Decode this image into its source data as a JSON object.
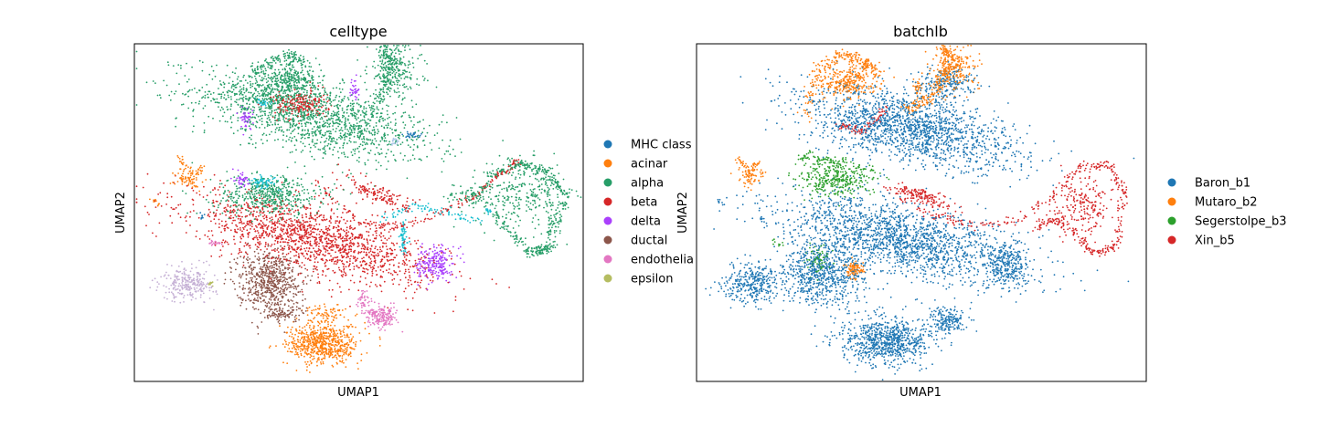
{
  "chart_data": [
    {
      "type": "scatter",
      "title": "celltype",
      "xlabel": "UMAP1",
      "ylabel": "UMAP2",
      "grid": false,
      "ticks": false,
      "legend_placement": "right-outside",
      "categories": [
        "MHC class",
        "acinar",
        "alpha",
        "beta",
        "delta",
        "ductal",
        "endothelia",
        "epsilon"
      ],
      "colors": [
        "#1f77b4",
        "#ff7f0e",
        "#279e68",
        "#d62728",
        "#aa40fc",
        "#8c564b",
        "#e377c2",
        "#b5bd61"
      ],
      "extra_colors": [
        "#17becf",
        "#aec7e8",
        "#c5b0d5"
      ],
      "clusters": [
        {
          "label": "alpha",
          "x": 0.4,
          "y": 0.78,
          "w": 0.28,
          "h": 0.1,
          "rot": -18,
          "n": 1400
        },
        {
          "label": "alpha",
          "x": 0.74,
          "y": 0.55,
          "w": 0.05,
          "h": 0.04,
          "rot": 0,
          "n": 60
        },
        {
          "label": "alpha",
          "x": 0.86,
          "y": 0.55,
          "w": 0.1,
          "h": 0.1,
          "rot": 0,
          "n": 260
        },
        {
          "label": "alpha",
          "x": 0.32,
          "y": 0.86,
          "w": 0.1,
          "h": 0.06,
          "rot": 0,
          "n": 300
        },
        {
          "label": "alpha",
          "x": 0.3,
          "y": 0.55,
          "w": 0.12,
          "h": 0.06,
          "rot": 0,
          "n": 500
        },
        {
          "label": "alpha",
          "x": 0.58,
          "y": 0.92,
          "w": 0.06,
          "h": 0.08,
          "rot": 0,
          "n": 250
        },
        {
          "label": "alpha",
          "x": 0.35,
          "y": 0.9,
          "w": 0.06,
          "h": 0.04,
          "rot": 0,
          "n": 200
        },
        {
          "label": "beta",
          "x": 0.4,
          "y": 0.42,
          "w": 0.28,
          "h": 0.09,
          "rot": -20,
          "n": 1600
        },
        {
          "label": "beta",
          "x": 0.37,
          "y": 0.82,
          "w": 0.06,
          "h": 0.04,
          "rot": 0,
          "n": 220
        },
        {
          "label": "beta",
          "x": 0.55,
          "y": 0.55,
          "w": 0.08,
          "h": 0.03,
          "rot": -30,
          "n": 150
        },
        {
          "label": "ductal",
          "x": 0.3,
          "y": 0.3,
          "w": 0.07,
          "h": 0.09,
          "rot": 0,
          "n": 650
        },
        {
          "label": "ductal",
          "x": 0.33,
          "y": 0.2,
          "w": 0.05,
          "h": 0.02,
          "rot": 0,
          "n": 90
        },
        {
          "label": "acinar",
          "x": 0.42,
          "y": 0.11,
          "w": 0.08,
          "h": 0.06,
          "rot": 0,
          "n": 650
        },
        {
          "label": "acinar",
          "x": 0.43,
          "y": 0.2,
          "w": 0.04,
          "h": 0.03,
          "rot": 0,
          "n": 80
        },
        {
          "label": "acinar",
          "x": 0.12,
          "y": 0.6,
          "w": 0.03,
          "h": 0.03,
          "rot": 0,
          "n": 70
        },
        {
          "label": "endothelia",
          "x": 0.55,
          "y": 0.19,
          "w": 0.035,
          "h": 0.03,
          "rot": 0,
          "n": 180
        },
        {
          "label": "endothelia",
          "x": 0.51,
          "y": 0.24,
          "w": 0.015,
          "h": 0.04,
          "rot": 0,
          "n": 40
        },
        {
          "label": "endothelia",
          "x": 0.18,
          "y": 0.41,
          "w": 0.015,
          "h": 0.01,
          "rot": 0,
          "n": 20
        },
        {
          "label": "delta",
          "x": 0.67,
          "y": 0.35,
          "w": 0.04,
          "h": 0.05,
          "rot": 0,
          "n": 220
        },
        {
          "label": "delta",
          "x": 0.24,
          "y": 0.6,
          "w": 0.015,
          "h": 0.03,
          "rot": 0,
          "n": 45
        },
        {
          "label": "delta",
          "x": 0.25,
          "y": 0.78,
          "w": 0.015,
          "h": 0.03,
          "rot": 0,
          "n": 45
        },
        {
          "label": "delta",
          "x": 0.49,
          "y": 0.86,
          "w": 0.01,
          "h": 0.03,
          "rot": 0,
          "n": 35
        },
        {
          "label": "MHC class",
          "x": 0.62,
          "y": 0.73,
          "w": 0.02,
          "h": 0.01,
          "rot": 0,
          "n": 25
        },
        {
          "label": "MHC class",
          "x": 0.15,
          "y": 0.49,
          "w": 0.005,
          "h": 0.01,
          "rot": 0,
          "n": 8
        },
        {
          "label": "epsilon",
          "x": 0.17,
          "y": 0.29,
          "w": 0.006,
          "h": 0.008,
          "rot": 0,
          "n": 12
        }
      ],
      "extra_clusters": [
        {
          "color_index": 2,
          "x": 0.12,
          "y": 0.29,
          "w": 0.06,
          "h": 0.05,
          "n": 260
        },
        {
          "color_index": 0,
          "x": 0.29,
          "y": 0.59,
          "w": 0.03,
          "h": 0.02,
          "n": 70
        },
        {
          "color_index": 0,
          "x": 0.6,
          "y": 0.42,
          "w": 0.01,
          "h": 0.05,
          "n": 60
        },
        {
          "color_index": 1,
          "x": 0.58,
          "y": 0.71,
          "w": 0.01,
          "h": 0.01,
          "n": 20
        }
      ],
      "curves": [
        {
          "label": "alpha",
          "pts": [
            [
              0.27,
              0.91
            ],
            [
              0.3,
              0.95
            ],
            [
              0.35,
              0.97
            ],
            [
              0.38,
              0.94
            ]
          ],
          "n": 120,
          "spread": 0.008
        },
        {
          "label": "alpha",
          "pts": [
            [
              0.5,
              0.74
            ],
            [
              0.55,
              0.85
            ],
            [
              0.57,
              0.95
            ],
            [
              0.55,
              0.99
            ]
          ],
          "n": 150,
          "spread": 0.008
        },
        {
          "label": "alpha",
          "pts": [
            [
              0.75,
              0.53
            ],
            [
              0.8,
              0.61
            ],
            [
              0.86,
              0.65
            ],
            [
              0.9,
              0.62
            ],
            [
              0.93,
              0.5
            ],
            [
              0.92,
              0.4
            ],
            [
              0.88,
              0.38
            ],
            [
              0.84,
              0.44
            ],
            [
              0.8,
              0.5
            ]
          ],
          "n": 280,
          "spread": 0.007
        },
        {
          "label": "alpha",
          "pts": [
            [
              0.84,
              0.65
            ],
            [
              0.92,
              0.62
            ],
            [
              0.96,
              0.55
            ],
            [
              0.93,
              0.4
            ],
            [
              0.89,
              0.38
            ]
          ],
          "n": 200,
          "spread": 0.006
        },
        {
          "label": "beta",
          "pts": [
            [
              0.4,
              0.6
            ],
            [
              0.5,
              0.47
            ],
            [
              0.6,
              0.46
            ],
            [
              0.68,
              0.5
            ],
            [
              0.76,
              0.55
            ],
            [
              0.82,
              0.62
            ],
            [
              0.86,
              0.66
            ]
          ],
          "n": 180,
          "spread": 0.005
        },
        {
          "label": "extra0",
          "pts": [
            [
              0.55,
              0.48
            ],
            [
              0.62,
              0.52
            ],
            [
              0.7,
              0.5
            ],
            [
              0.76,
              0.47
            ],
            [
              0.8,
              0.52
            ]
          ],
          "n": 100,
          "spread": 0.006
        },
        {
          "label": "extra0",
          "pts": [
            [
              0.27,
              0.83
            ],
            [
              0.3,
              0.82
            ]
          ],
          "n": 30,
          "spread": 0.006
        },
        {
          "label": "acinar",
          "pts": [
            [
              0.1,
              0.67
            ],
            [
              0.11,
              0.64
            ],
            [
              0.14,
              0.61
            ],
            [
              0.15,
              0.64
            ]
          ],
          "n": 40,
          "spread": 0.004
        },
        {
          "label": "acinar",
          "pts": [
            [
              0.04,
              0.54
            ],
            [
              0.06,
              0.52
            ]
          ],
          "n": 10,
          "spread": 0.003
        }
      ]
    },
    {
      "type": "scatter",
      "title": "batchlb",
      "xlabel": "UMAP1",
      "ylabel": "UMAP2",
      "grid": false,
      "ticks": false,
      "legend_placement": "right-outside",
      "categories": [
        "Baron_b1",
        "Mutaro_b2",
        "Segerstolpe_b3",
        "Xin_b5"
      ],
      "colors": [
        "#1f77b4",
        "#ff7f0e",
        "#2ca02c",
        "#d62728"
      ],
      "clusters": [
        {
          "label": "Baron_b1",
          "x": 0.47,
          "y": 0.75,
          "w": 0.25,
          "h": 0.1,
          "rot": -18,
          "n": 1700
        },
        {
          "label": "Baron_b1",
          "x": 0.46,
          "y": 0.42,
          "w": 0.28,
          "h": 0.1,
          "rot": -18,
          "n": 1800
        },
        {
          "label": "Baron_b1",
          "x": 0.28,
          "y": 0.32,
          "w": 0.09,
          "h": 0.1,
          "rot": 0,
          "n": 700
        },
        {
          "label": "Baron_b1",
          "x": 0.42,
          "y": 0.12,
          "w": 0.1,
          "h": 0.07,
          "rot": 0,
          "n": 800
        },
        {
          "label": "Baron_b1",
          "x": 0.12,
          "y": 0.29,
          "w": 0.07,
          "h": 0.06,
          "rot": 0,
          "n": 330
        },
        {
          "label": "Baron_b1",
          "x": 0.56,
          "y": 0.18,
          "w": 0.04,
          "h": 0.04,
          "rot": 0,
          "n": 180
        },
        {
          "label": "Baron_b1",
          "x": 0.69,
          "y": 0.34,
          "w": 0.04,
          "h": 0.06,
          "rot": 0,
          "n": 240
        },
        {
          "label": "Baron_b1",
          "x": 0.55,
          "y": 0.88,
          "w": 0.07,
          "h": 0.05,
          "rot": 0,
          "n": 200
        },
        {
          "label": "Mutaro_b2",
          "x": 0.34,
          "y": 0.89,
          "w": 0.07,
          "h": 0.05,
          "rot": 0,
          "n": 300
        },
        {
          "label": "Mutaro_b2",
          "x": 0.57,
          "y": 0.92,
          "w": 0.05,
          "h": 0.06,
          "rot": 0,
          "n": 230
        },
        {
          "label": "Mutaro_b2",
          "x": 0.35,
          "y": 0.33,
          "w": 0.02,
          "h": 0.025,
          "rot": 0,
          "n": 90
        },
        {
          "label": "Mutaro_b2",
          "x": 0.12,
          "y": 0.61,
          "w": 0.025,
          "h": 0.03,
          "rot": 0,
          "n": 70
        },
        {
          "label": "Mutaro_b2",
          "x": 0.49,
          "y": 0.87,
          "w": 0.01,
          "h": 0.03,
          "rot": 0,
          "n": 30
        },
        {
          "label": "Segerstolpe_b3",
          "x": 0.31,
          "y": 0.6,
          "w": 0.09,
          "h": 0.05,
          "rot": 0,
          "n": 350
        },
        {
          "label": "Segerstolpe_b3",
          "x": 0.27,
          "y": 0.36,
          "w": 0.03,
          "h": 0.04,
          "rot": 0,
          "n": 70
        },
        {
          "label": "Xin_b5",
          "x": 0.5,
          "y": 0.55,
          "w": 0.07,
          "h": 0.02,
          "rot": -30,
          "n": 150
        },
        {
          "label": "Xin_b5",
          "x": 0.86,
          "y": 0.52,
          "w": 0.07,
          "h": 0.08,
          "rot": 0,
          "n": 200
        }
      ],
      "curves": [
        {
          "label": "Mutaro_b2",
          "pts": [
            [
              0.24,
              0.78
            ],
            [
              0.27,
              0.92
            ],
            [
              0.32,
              0.97
            ],
            [
              0.37,
              0.95
            ],
            [
              0.4,
              0.92
            ]
          ],
          "n": 200,
          "spread": 0.008
        },
        {
          "label": "Mutaro_b2",
          "pts": [
            [
              0.46,
              0.8
            ],
            [
              0.52,
              0.84
            ],
            [
              0.57,
              0.95
            ],
            [
              0.55,
              0.99
            ]
          ],
          "n": 200,
          "spread": 0.008
        },
        {
          "label": "Mutaro_b2",
          "pts": [
            [
              0.09,
              0.66
            ],
            [
              0.12,
              0.62
            ],
            [
              0.14,
              0.66
            ]
          ],
          "n": 40,
          "spread": 0.004
        },
        {
          "label": "Xin_b5",
          "pts": [
            [
              0.42,
              0.58
            ],
            [
              0.52,
              0.49
            ],
            [
              0.62,
              0.46
            ],
            [
              0.72,
              0.48
            ],
            [
              0.8,
              0.56
            ],
            [
              0.86,
              0.64
            ],
            [
              0.92,
              0.64
            ],
            [
              0.95,
              0.55
            ],
            [
              0.93,
              0.4
            ],
            [
              0.88,
              0.38
            ],
            [
              0.84,
              0.44
            ],
            [
              0.8,
              0.48
            ],
            [
              0.75,
              0.46
            ]
          ],
          "n": 420,
          "spread": 0.006
        },
        {
          "label": "Xin_b5",
          "pts": [
            [
              0.32,
              0.76
            ],
            [
              0.37,
              0.74
            ],
            [
              0.42,
              0.8
            ]
          ],
          "n": 80,
          "spread": 0.006
        },
        {
          "label": "Segerstolpe_b3",
          "pts": [
            [
              0.23,
              0.66
            ],
            [
              0.27,
              0.66
            ],
            [
              0.33,
              0.64
            ]
          ],
          "n": 80,
          "spread": 0.01
        },
        {
          "label": "Baron_b1",
          "pts": [
            [
              0.05,
              0.54
            ],
            [
              0.06,
              0.52
            ]
          ],
          "n": 8,
          "spread": 0.003
        },
        {
          "label": "Baron_b1",
          "pts": [
            [
              0.14,
              0.49
            ],
            [
              0.15,
              0.47
            ]
          ],
          "n": 8,
          "spread": 0.003
        },
        {
          "label": "Segerstolpe_b3",
          "pts": [
            [
              0.17,
              0.42
            ],
            [
              0.19,
              0.4
            ]
          ],
          "n": 10,
          "spread": 0.003
        }
      ]
    }
  ]
}
